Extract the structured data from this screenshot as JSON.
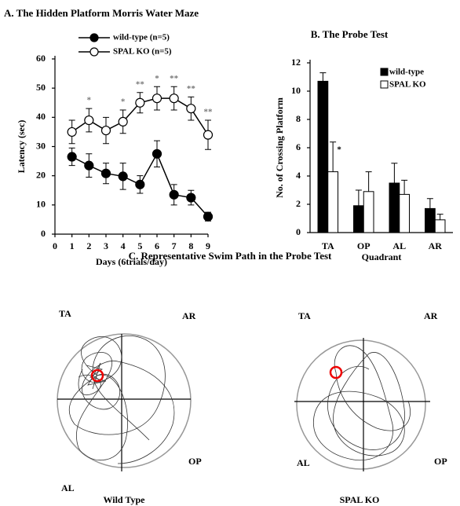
{
  "chart_data": [
    {
      "type": "line",
      "title": "A. The Hidden Platform Morris Water Maze",
      "x_label": "Days (6trials/day)",
      "y_label": "Latency (sec)",
      "x": [
        1,
        2,
        3,
        4,
        5,
        6,
        7,
        8,
        9
      ],
      "xlim": [
        0,
        9
      ],
      "xticks": [
        0,
        1,
        2,
        3,
        4,
        5,
        6,
        7,
        8,
        9
      ],
      "ylim": [
        0,
        60
      ],
      "yticks": [
        0,
        10,
        20,
        30,
        40,
        50,
        60
      ],
      "grid": false,
      "series": [
        {
          "name": "wild-type (n=5)",
          "color": "#000000",
          "marker_fill": "#000000",
          "values": [
            26.5,
            23.5,
            20.8,
            19.8,
            17,
            27.5,
            13.5,
            12.5,
            6
          ],
          "errors": [
            3,
            4,
            3.5,
            4.5,
            3,
            4.5,
            3.5,
            2.5,
            1.5
          ]
        },
        {
          "name": "SPAL KO (n=5)",
          "color": "#000000",
          "marker_fill": "#ffffff",
          "values": [
            35,
            39,
            35.5,
            38.5,
            45,
            46.5,
            46.5,
            43,
            34
          ],
          "errors": [
            4,
            4,
            4.5,
            4,
            3.5,
            4,
            4,
            4,
            5
          ],
          "significance": [
            null,
            "*",
            null,
            "*",
            "**",
            "*",
            "**",
            "**",
            "**"
          ]
        }
      ]
    },
    {
      "type": "bar",
      "title": "B. The Probe Test",
      "x_label": "Quadrant",
      "y_label": "No. of Crossing Platform",
      "categories": [
        "TA",
        "OP",
        "AL",
        "AR"
      ],
      "ylim": [
        0,
        12
      ],
      "yticks": [
        0,
        2,
        4,
        6,
        8,
        10,
        12
      ],
      "grid": false,
      "series": [
        {
          "name": "wild-type",
          "color": "#000000",
          "values": [
            10.7,
            1.9,
            3.5,
            1.7
          ],
          "errors": [
            0.6,
            1.1,
            1.4,
            0.7
          ]
        },
        {
          "name": "SPAL KO",
          "color": "#ffffff",
          "values": [
            4.3,
            2.9,
            2.7,
            0.9
          ],
          "errors": [
            2.1,
            1.4,
            1.0,
            0.4
          ],
          "significance": [
            "*",
            null,
            null,
            null
          ]
        }
      ]
    }
  ],
  "panel_c": {
    "title": "C. Representative Swim Path in the Probe Test",
    "pools": [
      {
        "caption": "Wild Type",
        "quadrants": [
          "TA",
          "AR",
          "AL",
          "OP"
        ]
      },
      {
        "caption": "SPAL KO",
        "quadrants": [
          "TA",
          "AR",
          "AL",
          "OP"
        ]
      }
    ]
  }
}
